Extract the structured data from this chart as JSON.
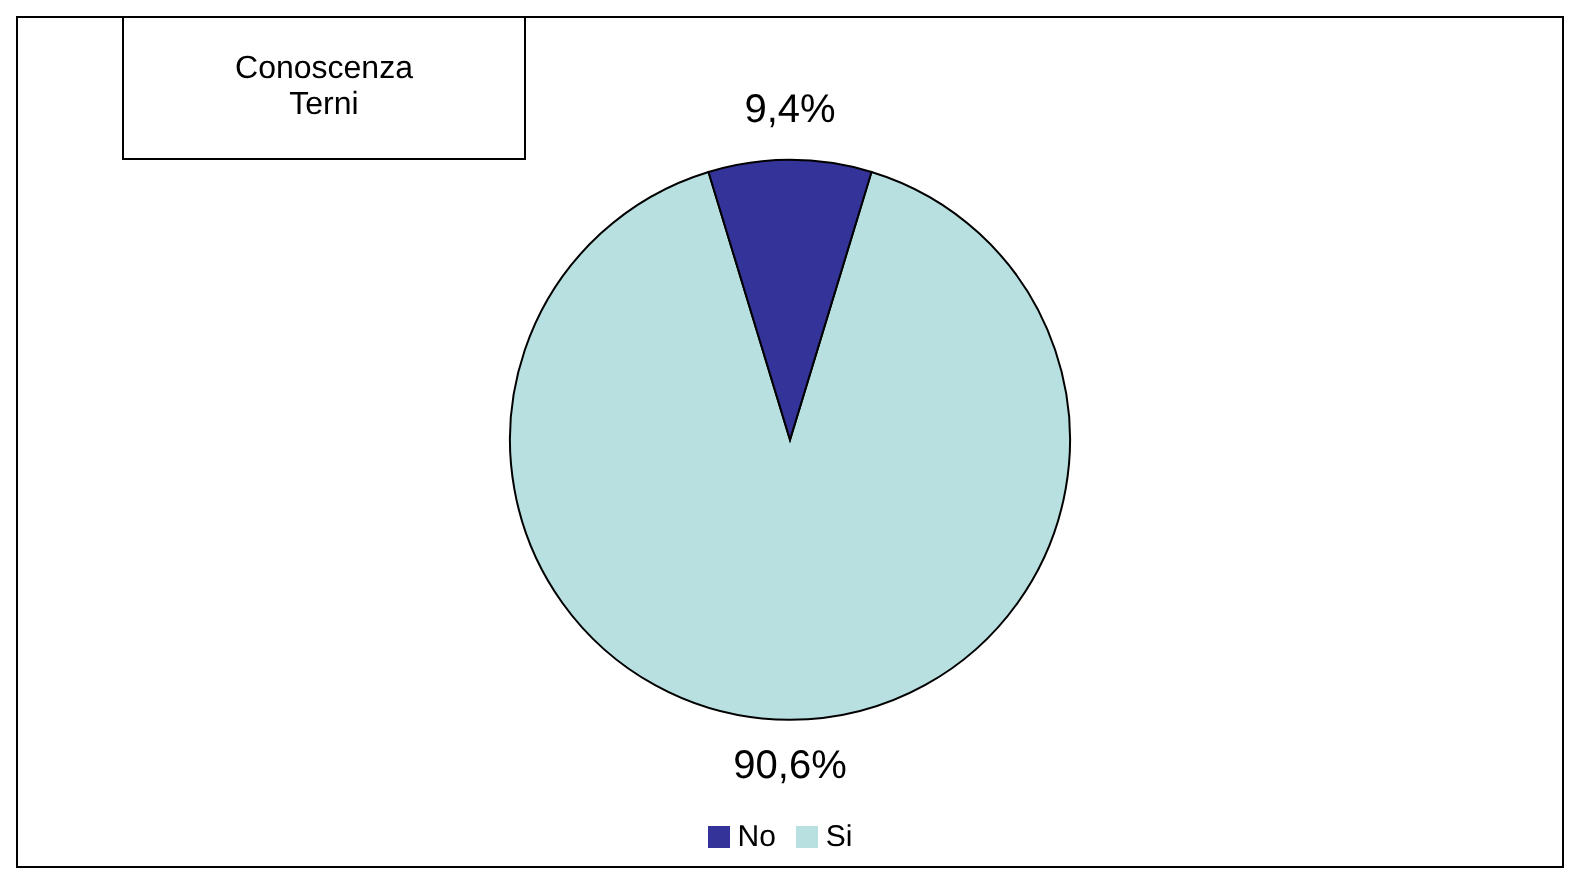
{
  "chart_data": {
    "type": "pie",
    "title": "Conoscenza\nTerni",
    "categories": [
      "Si",
      "No"
    ],
    "values": [
      90.6,
      9.4
    ],
    "colors": [
      "#b8e0e0",
      "#333399"
    ],
    "value_labels": [
      "90,6%",
      "9,4%"
    ],
    "legend": "bottom"
  }
}
